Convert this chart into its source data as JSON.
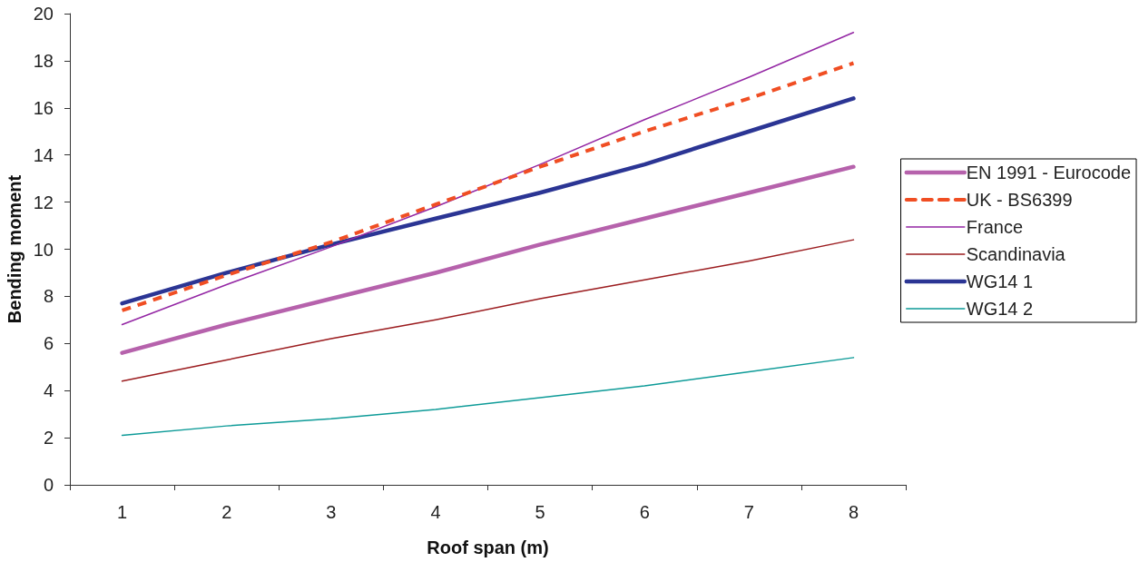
{
  "chart_data": {
    "type": "line",
    "xlabel": "Roof span (m)",
    "ylabel": "Bending moment",
    "categories": [
      "1",
      "2",
      "3",
      "4",
      "5",
      "6",
      "7",
      "8"
    ],
    "series": [
      {
        "name": "EN 1991 - Eurocode",
        "color": "#b662ac",
        "values": [
          5.6,
          6.8,
          7.9,
          9.0,
          10.2,
          11.3,
          12.4,
          13.5
        ]
      },
      {
        "name": "UK - BS6399",
        "color": "#f04e23",
        "line_style": "dashed",
        "values": [
          7.4,
          8.9,
          10.3,
          11.9,
          13.5,
          15.0,
          16.4,
          17.9
        ]
      },
      {
        "name": "France",
        "color": "#9427a4",
        "values": [
          6.8,
          8.5,
          10.1,
          11.8,
          13.6,
          15.5,
          17.3,
          19.2
        ]
      },
      {
        "name": "Scandinavia",
        "color": "#9b1c1f",
        "values": [
          4.4,
          5.3,
          6.2,
          7.0,
          7.9,
          8.7,
          9.5,
          10.4
        ]
      },
      {
        "name": "WG14 1",
        "color": "#2b3594",
        "values": [
          7.7,
          9.0,
          10.2,
          11.3,
          12.4,
          13.6,
          15.0,
          16.4
        ]
      },
      {
        "name": "WG14 2",
        "color": "#0e9b98",
        "values": [
          2.1,
          2.5,
          2.8,
          3.2,
          3.7,
          4.2,
          4.8,
          5.4
        ]
      }
    ],
    "ylim": [
      0,
      20
    ],
    "yticks": [
      0,
      2,
      4,
      6,
      8,
      10,
      12,
      14,
      16,
      18,
      20
    ],
    "grid": false,
    "legend": "right",
    "marker": "none",
    "line_style": "solid"
  }
}
